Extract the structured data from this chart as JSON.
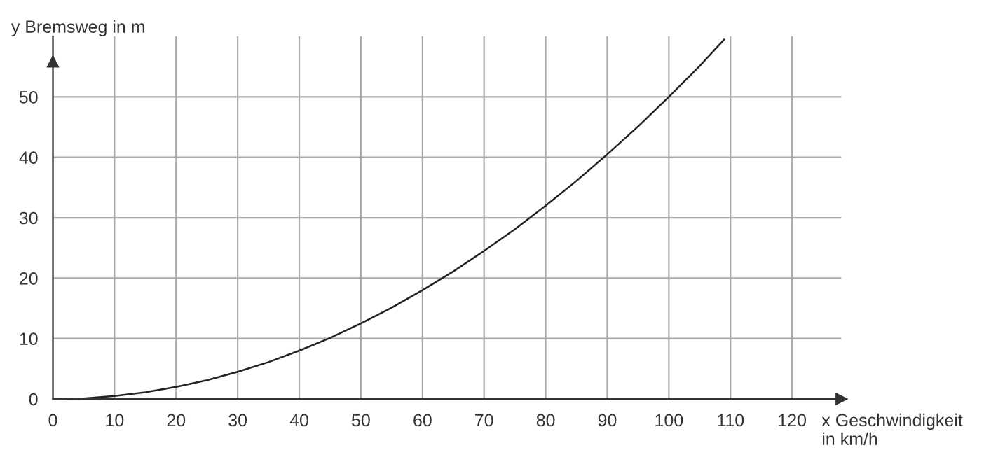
{
  "chart_data": {
    "type": "line",
    "xlabel": "x Geschwindigkeit\nin km/h",
    "ylabel": "y Bremsweg in m",
    "x": [
      0,
      5,
      10,
      15,
      20,
      25,
      30,
      35,
      40,
      45,
      50,
      55,
      60,
      65,
      70,
      75,
      80,
      85,
      90,
      95,
      100,
      105,
      109
    ],
    "series": [
      {
        "color": "#222222",
        "values": [
          0,
          0.1,
          0.5,
          1.1,
          2,
          3.1,
          4.5,
          6.1,
          8,
          10.1,
          12.5,
          15.1,
          18,
          21.1,
          24.5,
          28.1,
          32,
          36.1,
          40.5,
          45.1,
          50,
          55.1,
          59.5
        ]
      }
    ],
    "xlim": [
      0,
      128
    ],
    "ylim": [
      0,
      60
    ],
    "xticks": [
      0,
      10,
      20,
      30,
      40,
      50,
      60,
      70,
      80,
      90,
      100,
      110,
      120
    ],
    "yticks": [
      0,
      10,
      20,
      30,
      40,
      50
    ],
    "grid": true,
    "marker": "none",
    "line_style": "solid"
  }
}
